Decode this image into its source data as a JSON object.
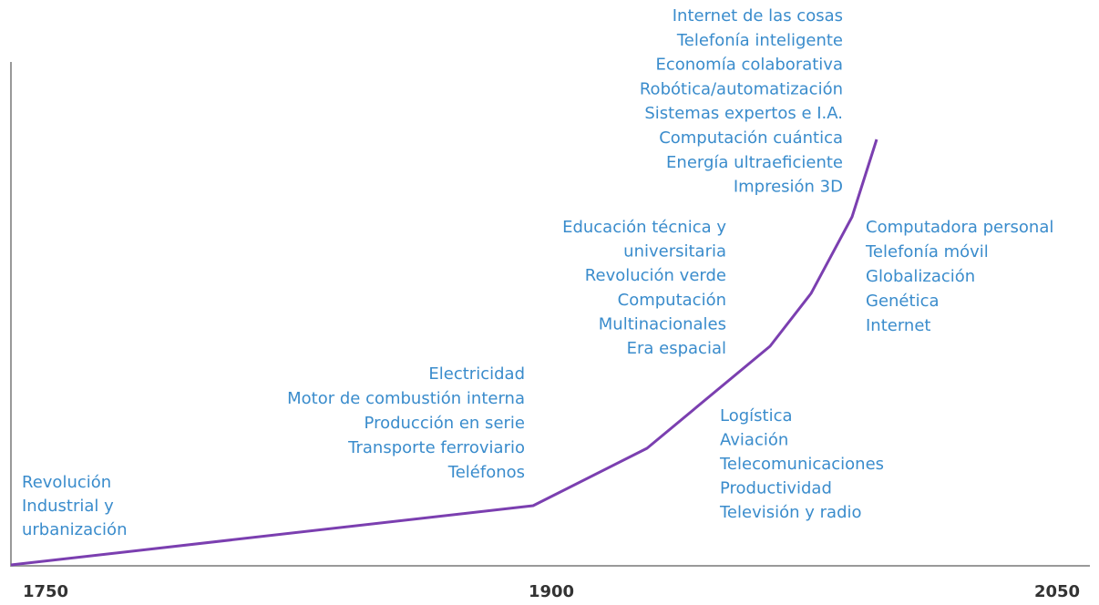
{
  "axis": {
    "labels": [
      "1750",
      "1900",
      "2050"
    ]
  },
  "groups": [
    {
      "lines": [
        "Revolución",
        "Industrial y",
        "urbanización"
      ]
    },
    {
      "lines": [
        "Electricidad",
        "Motor de combustión interna",
        "Producción en serie",
        "Transporte ferroviario",
        "Teléfonos"
      ]
    },
    {
      "lines": [
        "Logística",
        "Aviación",
        "Telecomunicaciones",
        "Productividad",
        "Televisión y radio"
      ]
    },
    {
      "lines": [
        "Educación técnica y",
        "universitaria",
        "Revolución verde",
        "Computación",
        "Multinacionales",
        "Era espacial"
      ]
    },
    {
      "lines": [
        "Computadora personal",
        "Telefonía móvil",
        "Globalización",
        "Genética",
        "Internet"
      ]
    },
    {
      "lines": [
        "Internet de las cosas",
        "Telefonía inteligente",
        "Economía colaborativa",
        "Robótica/automatización",
        "Sistemas expertos e I.A.",
        "Computación cuántica",
        "Energía ultraeficiente",
        "Impresión 3D"
      ]
    }
  ]
}
